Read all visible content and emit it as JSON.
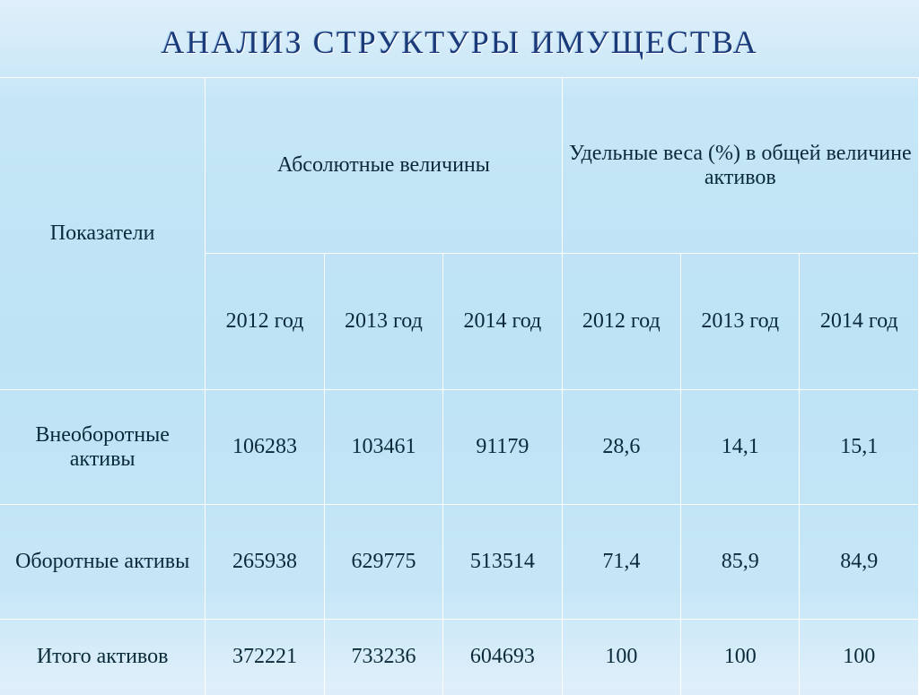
{
  "title": "АНАЛИЗ СТРУКТУРЫ ИМУЩЕСТВА",
  "table": {
    "header": {
      "indicators": "Показатели",
      "abs": "Абсолютные величины",
      "shares": "Удельные веса (%) в общей величине активов",
      "years": {
        "y1a": "2012 год",
        "y2a": "2013 год",
        "y3a": "2014 год",
        "y1b": "2012 год",
        "y2b": "2013 год",
        "y3b": "2014 год"
      }
    },
    "rows": {
      "r0": {
        "label": "Внеоборотные активы",
        "v1": "106283",
        "v2": "103461",
        "v3": "91179",
        "p1": "28,6",
        "p2": "14,1",
        "p3": "15,1"
      },
      "r1": {
        "label": "Оборотные активы",
        "v1": "265938",
        "v2": "629775",
        "v3": "513514",
        "p1": "71,4",
        "p2": "85,9",
        "p3": "84,9"
      },
      "r2": {
        "label": "Итого активов",
        "v1": "372221",
        "v2": "733236",
        "v3": "604693",
        "p1": "100",
        "p2": "100",
        "p3": "100"
      }
    }
  },
  "style": {
    "title_color": "#1a3a7a",
    "title_fontsize": 36,
    "cell_fontsize": 24,
    "border_color": "#ffffff",
    "text_color": "#0a2a3a",
    "bg_gradient_top": "#dfeffa",
    "bg_gradient_mid": "#bde3f5",
    "font_family": "Georgia"
  }
}
